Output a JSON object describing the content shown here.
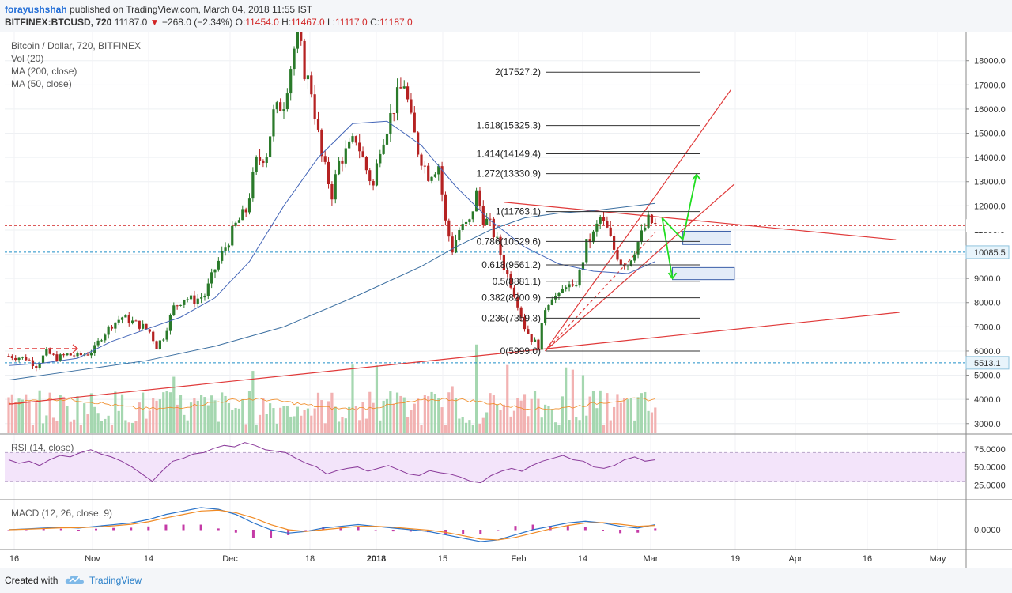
{
  "header": {
    "author": "forayushshah",
    "published": "published on TradingView.com, March 04, 2018 11:55 IST",
    "symbol": "BITFINEX:BTCUSD, 720",
    "last": "11187.0",
    "change": "−268.0 (−2.34%)",
    "o_label": "O:",
    "o_value": "11454.0",
    "h_label": "H:",
    "h_value": "11467.0",
    "l_label": "L:",
    "l_value": "11117.0",
    "c_label": "C:",
    "c_value": "11187.0"
  },
  "legend": {
    "title": "Bitcoin / Dollar, 720, BITFINEX",
    "vol": "Vol (20)",
    "ma200": "MA (200, close)",
    "ma50": "MA (50, close)",
    "rsi": "RSI (14, close)",
    "macd": "MACD (12, 26, close, 9)"
  },
  "footer": {
    "created_with": "Created with",
    "brand": "TradingView"
  },
  "colors": {
    "candle_up": "#2a7a2a",
    "candle_down": "#b52222",
    "ma50": "#4466b8",
    "ma200": "#3a6ea0",
    "trendline": "#e03a3a",
    "projection": "#22dd22",
    "rsi": "#8a3a9a",
    "rsi_band": "#f3e4fa",
    "macd": "#2a73c9",
    "signal": "#f08a24",
    "histogram": "#c43aa6",
    "volume_up": "#a5d7b0",
    "volume_down": "#f2b2b2"
  },
  "chart_data": [
    {
      "type": "candlestick",
      "title": "Bitcoin / Dollar, 720, BITFINEX",
      "x_ticks": [
        "16",
        "Nov",
        "14",
        "Dec",
        "18",
        "2018",
        "15",
        "Feb",
        "14",
        "Mar",
        "19",
        "Apr",
        "16",
        "May"
      ],
      "y_ticks": [
        "3000.0",
        "4000.0",
        "5000.0",
        "6000.0",
        "7000.0",
        "8000.0",
        "9000.0",
        "10000.0",
        "11000.0",
        "12000.0",
        "13000.0",
        "14000.0",
        "15000.0",
        "16000.0",
        "17000.0",
        "18000.0"
      ],
      "y_range": [
        2600,
        19200
      ],
      "price_markers": [
        {
          "label": "11187.0",
          "value": 11187,
          "color": "#d12424"
        },
        {
          "label": "10085.5",
          "value": 10085.5,
          "color": "#1d8fc6"
        },
        {
          "label": "5513.1",
          "value": 5513.1,
          "color": "#1d8fc6"
        }
      ],
      "price_path": [
        [
          0,
          5800
        ],
        [
          5,
          5700
        ],
        [
          8,
          5400
        ],
        [
          11,
          5950
        ],
        [
          14,
          5700
        ],
        [
          17,
          5850
        ],
        [
          20,
          5800
        ],
        [
          23,
          5900
        ],
        [
          25,
          6100
        ],
        [
          27,
          6600
        ],
        [
          30,
          7100
        ],
        [
          33,
          7400
        ],
        [
          36,
          7200
        ],
        [
          39,
          7000
        ],
        [
          41,
          6800
        ],
        [
          43,
          6200
        ],
        [
          45,
          6600
        ],
        [
          48,
          7800
        ],
        [
          51,
          8200
        ],
        [
          54,
          8100
        ],
        [
          57,
          8300
        ],
        [
          60,
          9400
        ],
        [
          63,
          10300
        ],
        [
          66,
          11200
        ],
        [
          69,
          11800
        ],
        [
          72,
          13800
        ],
        [
          75,
          14200
        ],
        [
          77,
          15800
        ],
        [
          80,
          16300
        ],
        [
          82,
          17800
        ],
        [
          84,
          19200
        ],
        [
          86,
          17600
        ],
        [
          88,
          16800
        ],
        [
          91,
          14000
        ],
        [
          94,
          12500
        ],
        [
          96,
          13800
        ],
        [
          98,
          14200
        ],
        [
          101,
          14800
        ],
        [
          104,
          13500
        ],
        [
          106,
          12800
        ],
        [
          108,
          14500
        ],
        [
          110,
          15300
        ],
        [
          113,
          16500
        ],
        [
          115,
          17100
        ],
        [
          117,
          15500
        ],
        [
          119,
          14300
        ],
        [
          122,
          13300
        ],
        [
          125,
          13700
        ],
        [
          127,
          11300
        ],
        [
          129,
          10200
        ],
        [
          131,
          11000
        ],
        [
          134,
          11300
        ],
        [
          136,
          12500
        ],
        [
          138,
          11500
        ],
        [
          140,
          11200
        ],
        [
          142,
          10500
        ],
        [
          144,
          9500
        ],
        [
          146,
          8800
        ],
        [
          148,
          8000
        ],
        [
          150,
          7000
        ],
        [
          152,
          6500
        ],
        [
          154,
          6200
        ],
        [
          156,
          7800
        ],
        [
          158,
          8300
        ],
        [
          160,
          8200
        ],
        [
          162,
          8800
        ],
        [
          164,
          8500
        ],
        [
          166,
          9200
        ],
        [
          168,
          10400
        ],
        [
          170,
          10800
        ],
        [
          172,
          11500
        ],
        [
          174,
          11000
        ],
        [
          176,
          10200
        ],
        [
          178,
          9700
        ],
        [
          180,
          9600
        ],
        [
          182,
          10200
        ],
        [
          184,
          10800
        ],
        [
          186,
          11400
        ],
        [
          188,
          11200
        ]
      ],
      "series": [
        {
          "name": "MA (50, close)",
          "values": [
            [
              0,
              5400
            ],
            [
              10,
              5500
            ],
            [
              20,
              5700
            ],
            [
              30,
              6400
            ],
            [
              40,
              6900
            ],
            [
              50,
              7400
            ],
            [
              60,
              8200
            ],
            [
              70,
              9700
            ],
            [
              80,
              12000
            ],
            [
              90,
              14000
            ],
            [
              100,
              15400
            ],
            [
              110,
              15500
            ],
            [
              120,
              14500
            ],
            [
              130,
              12800
            ],
            [
              140,
              11400
            ],
            [
              150,
              10300
            ],
            [
              160,
              9600
            ],
            [
              170,
              9300
            ],
            [
              180,
              9200
            ],
            [
              188,
              9700
            ]
          ]
        },
        {
          "name": "MA (200, close)",
          "values": [
            [
              0,
              4800
            ],
            [
              20,
              5200
            ],
            [
              40,
              5600
            ],
            [
              60,
              6200
            ],
            [
              80,
              7000
            ],
            [
              100,
              8200
            ],
            [
              120,
              9500
            ],
            [
              130,
              10300
            ],
            [
              140,
              11000
            ],
            [
              150,
              11500
            ],
            [
              160,
              11700
            ],
            [
              170,
              11800
            ],
            [
              188,
              12100
            ]
          ]
        }
      ],
      "fibonacci": [
        {
          "label": "2(17527.2)",
          "value": 17527.2
        },
        {
          "label": "1.618(15325.3)",
          "value": 15325.3
        },
        {
          "label": "1.414(14149.4)",
          "value": 14149.4
        },
        {
          "label": "1.272(13330.9)",
          "value": 13330.9
        },
        {
          "label": "1(11763.1)",
          "value": 11763.1
        },
        {
          "label": "0.786(10529.6)",
          "value": 10529.6
        },
        {
          "label": "0.618(9561.2)",
          "value": 9561.2
        },
        {
          "label": "0.5(8881.1)",
          "value": 8881.1
        },
        {
          "label": "0.382(8200.9)",
          "value": 8200.9
        },
        {
          "label": "0.236(7359.3)",
          "value": 7359.3
        },
        {
          "label": "0(5999.0)",
          "value": 5999.0
        }
      ]
    },
    {
      "type": "line",
      "title": "RSI (14, close)",
      "y_ticks": [
        "25.0000",
        "50.0000",
        "75.0000"
      ],
      "band": [
        30,
        70
      ],
      "values": [
        60,
        55,
        58,
        52,
        60,
        66,
        64,
        70,
        74,
        68,
        64,
        58,
        50,
        40,
        30,
        45,
        58,
        62,
        68,
        70,
        76,
        80,
        78,
        84,
        80,
        74,
        72,
        70,
        62,
        55,
        50,
        40,
        45,
        48,
        50,
        44,
        48,
        52,
        46,
        40,
        38,
        45,
        42,
        40,
        36,
        30,
        28,
        38,
        44,
        48,
        44,
        52,
        58,
        62,
        66,
        60,
        58,
        50,
        48,
        52,
        60,
        64,
        58,
        60
      ]
    },
    {
      "type": "line",
      "title": "MACD (12, 26, close, 9)",
      "y_ticks": [
        "0.0000"
      ],
      "series": [
        {
          "name": "MACD",
          "values": [
            0,
            50,
            100,
            150,
            100,
            200,
            300,
            400,
            600,
            900,
            1100,
            1300,
            1200,
            900,
            400,
            0,
            -200,
            -100,
            100,
            200,
            300,
            200,
            100,
            0,
            -100,
            -300,
            -500,
            -700,
            -600,
            -300,
            0,
            200,
            400,
            500,
            400,
            200,
            100,
            300
          ]
        },
        {
          "name": "Signal",
          "values": [
            0,
            30,
            70,
            110,
            120,
            160,
            230,
            320,
            470,
            700,
            900,
            1100,
            1150,
            1000,
            700,
            300,
            0,
            -100,
            0,
            100,
            200,
            200,
            150,
            60,
            -20,
            -150,
            -350,
            -550,
            -600,
            -450,
            -200,
            50,
            250,
            400,
            420,
            320,
            200,
            250
          ]
        }
      ]
    }
  ]
}
